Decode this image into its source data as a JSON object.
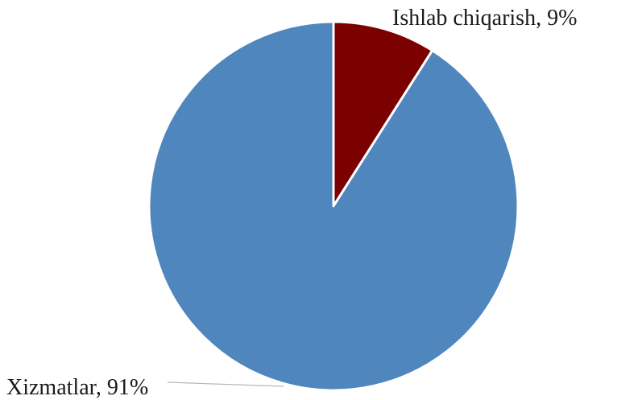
{
  "chart_data": {
    "type": "pie",
    "slices": [
      {
        "label": "Ishlab chiqarish",
        "value": 9,
        "display": "Ishlab chiqarish, 9%",
        "color": "#7b0000"
      },
      {
        "label": "Xizmatlar",
        "value": 91,
        "display": "Xizmatlar, 91%",
        "color": "#4f86bd"
      }
    ],
    "start_angle": "12 o'clock",
    "direction": "clockwise",
    "legend": "none",
    "separator_color": "#ffffff",
    "leader_line_color": "#b8b8b8"
  }
}
